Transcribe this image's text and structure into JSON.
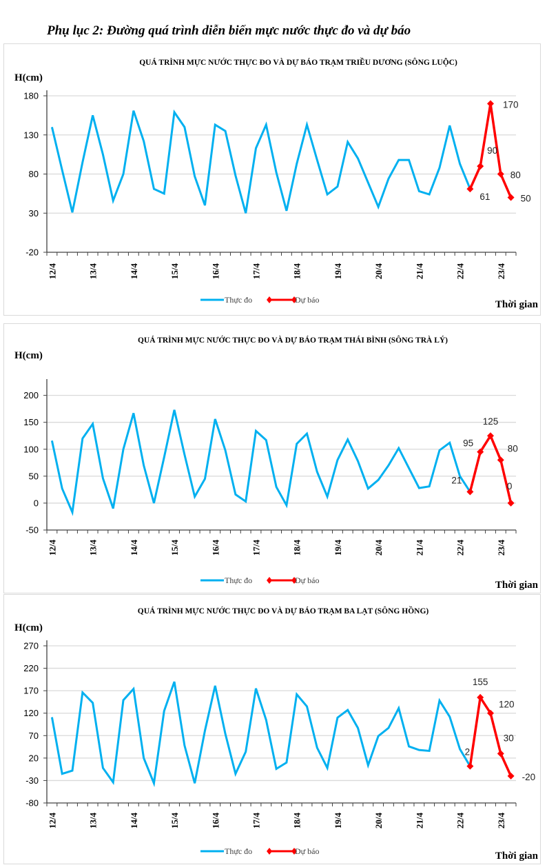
{
  "page": {
    "title": "Phụ lục 2: Đường quá trình diễn biến mực nước thực đo và dự báo"
  },
  "chart_data": [
    {
      "type": "line",
      "title": "QUÁ TRÌNH MỰC NƯỚC THỰC ĐO VÀ DỰ BÁO TRẠM TRIỀU DƯƠNG (SÔNG LUỘC)",
      "ylabel": "H(cm)",
      "xlabel": "Thời gian",
      "ylim": [
        -20,
        180
      ],
      "yticks": [
        -20,
        30,
        80,
        130,
        180
      ],
      "grid": true,
      "legend": "bottom-center",
      "n_categories": 46,
      "xtick_labels": [
        "12/4",
        "13/4",
        "14/4",
        "15/4",
        "16/4",
        "17/4",
        "18/4",
        "19/4",
        "20/4",
        "21/4",
        "22/4",
        "23/4"
      ],
      "xtick_every": 4,
      "series": [
        {
          "name": "Thực đo",
          "color": "#00b0f0",
          "start_index": 0,
          "values": [
            140,
            85,
            31,
            95,
            155,
            105,
            46,
            80,
            161,
            122,
            61,
            55,
            159,
            140,
            77,
            40,
            143,
            135,
            78,
            30,
            113,
            143,
            82,
            33,
            93,
            143,
            98,
            54,
            64,
            121,
            100,
            69,
            38,
            74,
            98,
            98,
            58,
            54,
            88,
            142,
            93,
            61
          ]
        },
        {
          "name": "Dự báo",
          "color": "#ff0000",
          "marker": "diamond",
          "start_index": 41,
          "values": [
            61,
            90,
            170,
            80,
            50
          ],
          "labels": [
            "61",
            "90",
            "170",
            "80",
            "50"
          ]
        }
      ]
    },
    {
      "type": "line",
      "title": "QUÁ TRÌNH MỰC NƯỚC THỰC ĐO VÀ DỰ BÁO TRẠM THÁI BÌNH (SÔNG TRÀ LÝ)",
      "ylabel": "H(cm)",
      "xlabel": "Thời gian",
      "ylim": [
        -50,
        220
      ],
      "yticks": [
        -50,
        0,
        50,
        100,
        150,
        200
      ],
      "grid": true,
      "legend": "bottom-center",
      "n_categories": 46,
      "xtick_labels": [
        "12/4",
        "13/4",
        "14/4",
        "15/4",
        "16/4",
        "17/4",
        "18/4",
        "19/4",
        "20/4",
        "21/4",
        "22/4",
        "23/4"
      ],
      "xtick_every": 4,
      "series": [
        {
          "name": "Thực đo",
          "color": "#00b0f0",
          "start_index": 0,
          "values": [
            116,
            27,
            -17,
            120,
            147,
            46,
            -10,
            100,
            167,
            70,
            0,
            85,
            173,
            90,
            12,
            45,
            156,
            98,
            16,
            3,
            134,
            117,
            30,
            -4,
            110,
            129,
            58,
            12,
            80,
            118,
            78,
            27,
            43,
            70,
            102,
            65,
            28,
            31,
            98,
            112,
            50,
            21
          ]
        },
        {
          "name": "Dự báo",
          "color": "#ff0000",
          "marker": "diamond",
          "start_index": 41,
          "values": [
            21,
            95,
            125,
            80,
            0
          ],
          "labels": [
            "21",
            "95",
            "125",
            "80",
            "0"
          ]
        }
      ]
    },
    {
      "type": "line",
      "title": "QUÁ TRÌNH MỰC NƯỚC THỰC ĐO VÀ DỰ BÁO TRẠM BA LẠT (SÔNG HỒNG)",
      "ylabel": "H(cm)",
      "xlabel": "Thời gian",
      "ylim": [
        -80,
        270
      ],
      "yticks": [
        -80,
        -30,
        20,
        70,
        120,
        170,
        220,
        270
      ],
      "grid": true,
      "legend": "bottom-center",
      "n_categories": 46,
      "xtick_labels": [
        "12/4",
        "13/4",
        "14/4",
        "15/4",
        "16/4",
        "17/4",
        "18/4",
        "19/4",
        "20/4",
        "21/4",
        "22/4",
        "23/4"
      ],
      "xtick_every": 4,
      "series": [
        {
          "name": "Thực đo",
          "color": "#00b0f0",
          "start_index": 0,
          "values": [
            111,
            -15,
            -8,
            166,
            143,
            -2,
            -34,
            149,
            174,
            20,
            -36,
            125,
            190,
            48,
            -36,
            81,
            181,
            74,
            -15,
            34,
            175,
            105,
            -4,
            10,
            162,
            135,
            43,
            -2,
            110,
            127,
            87,
            4,
            69,
            87,
            131,
            46,
            38,
            36,
            148,
            112,
            40,
            2
          ]
        },
        {
          "name": "Dự báo",
          "color": "#ff0000",
          "marker": "diamond",
          "start_index": 41,
          "values": [
            2,
            155,
            120,
            30,
            -20
          ],
          "labels": [
            "2",
            "155",
            "120",
            "30",
            "-20"
          ]
        }
      ]
    }
  ]
}
